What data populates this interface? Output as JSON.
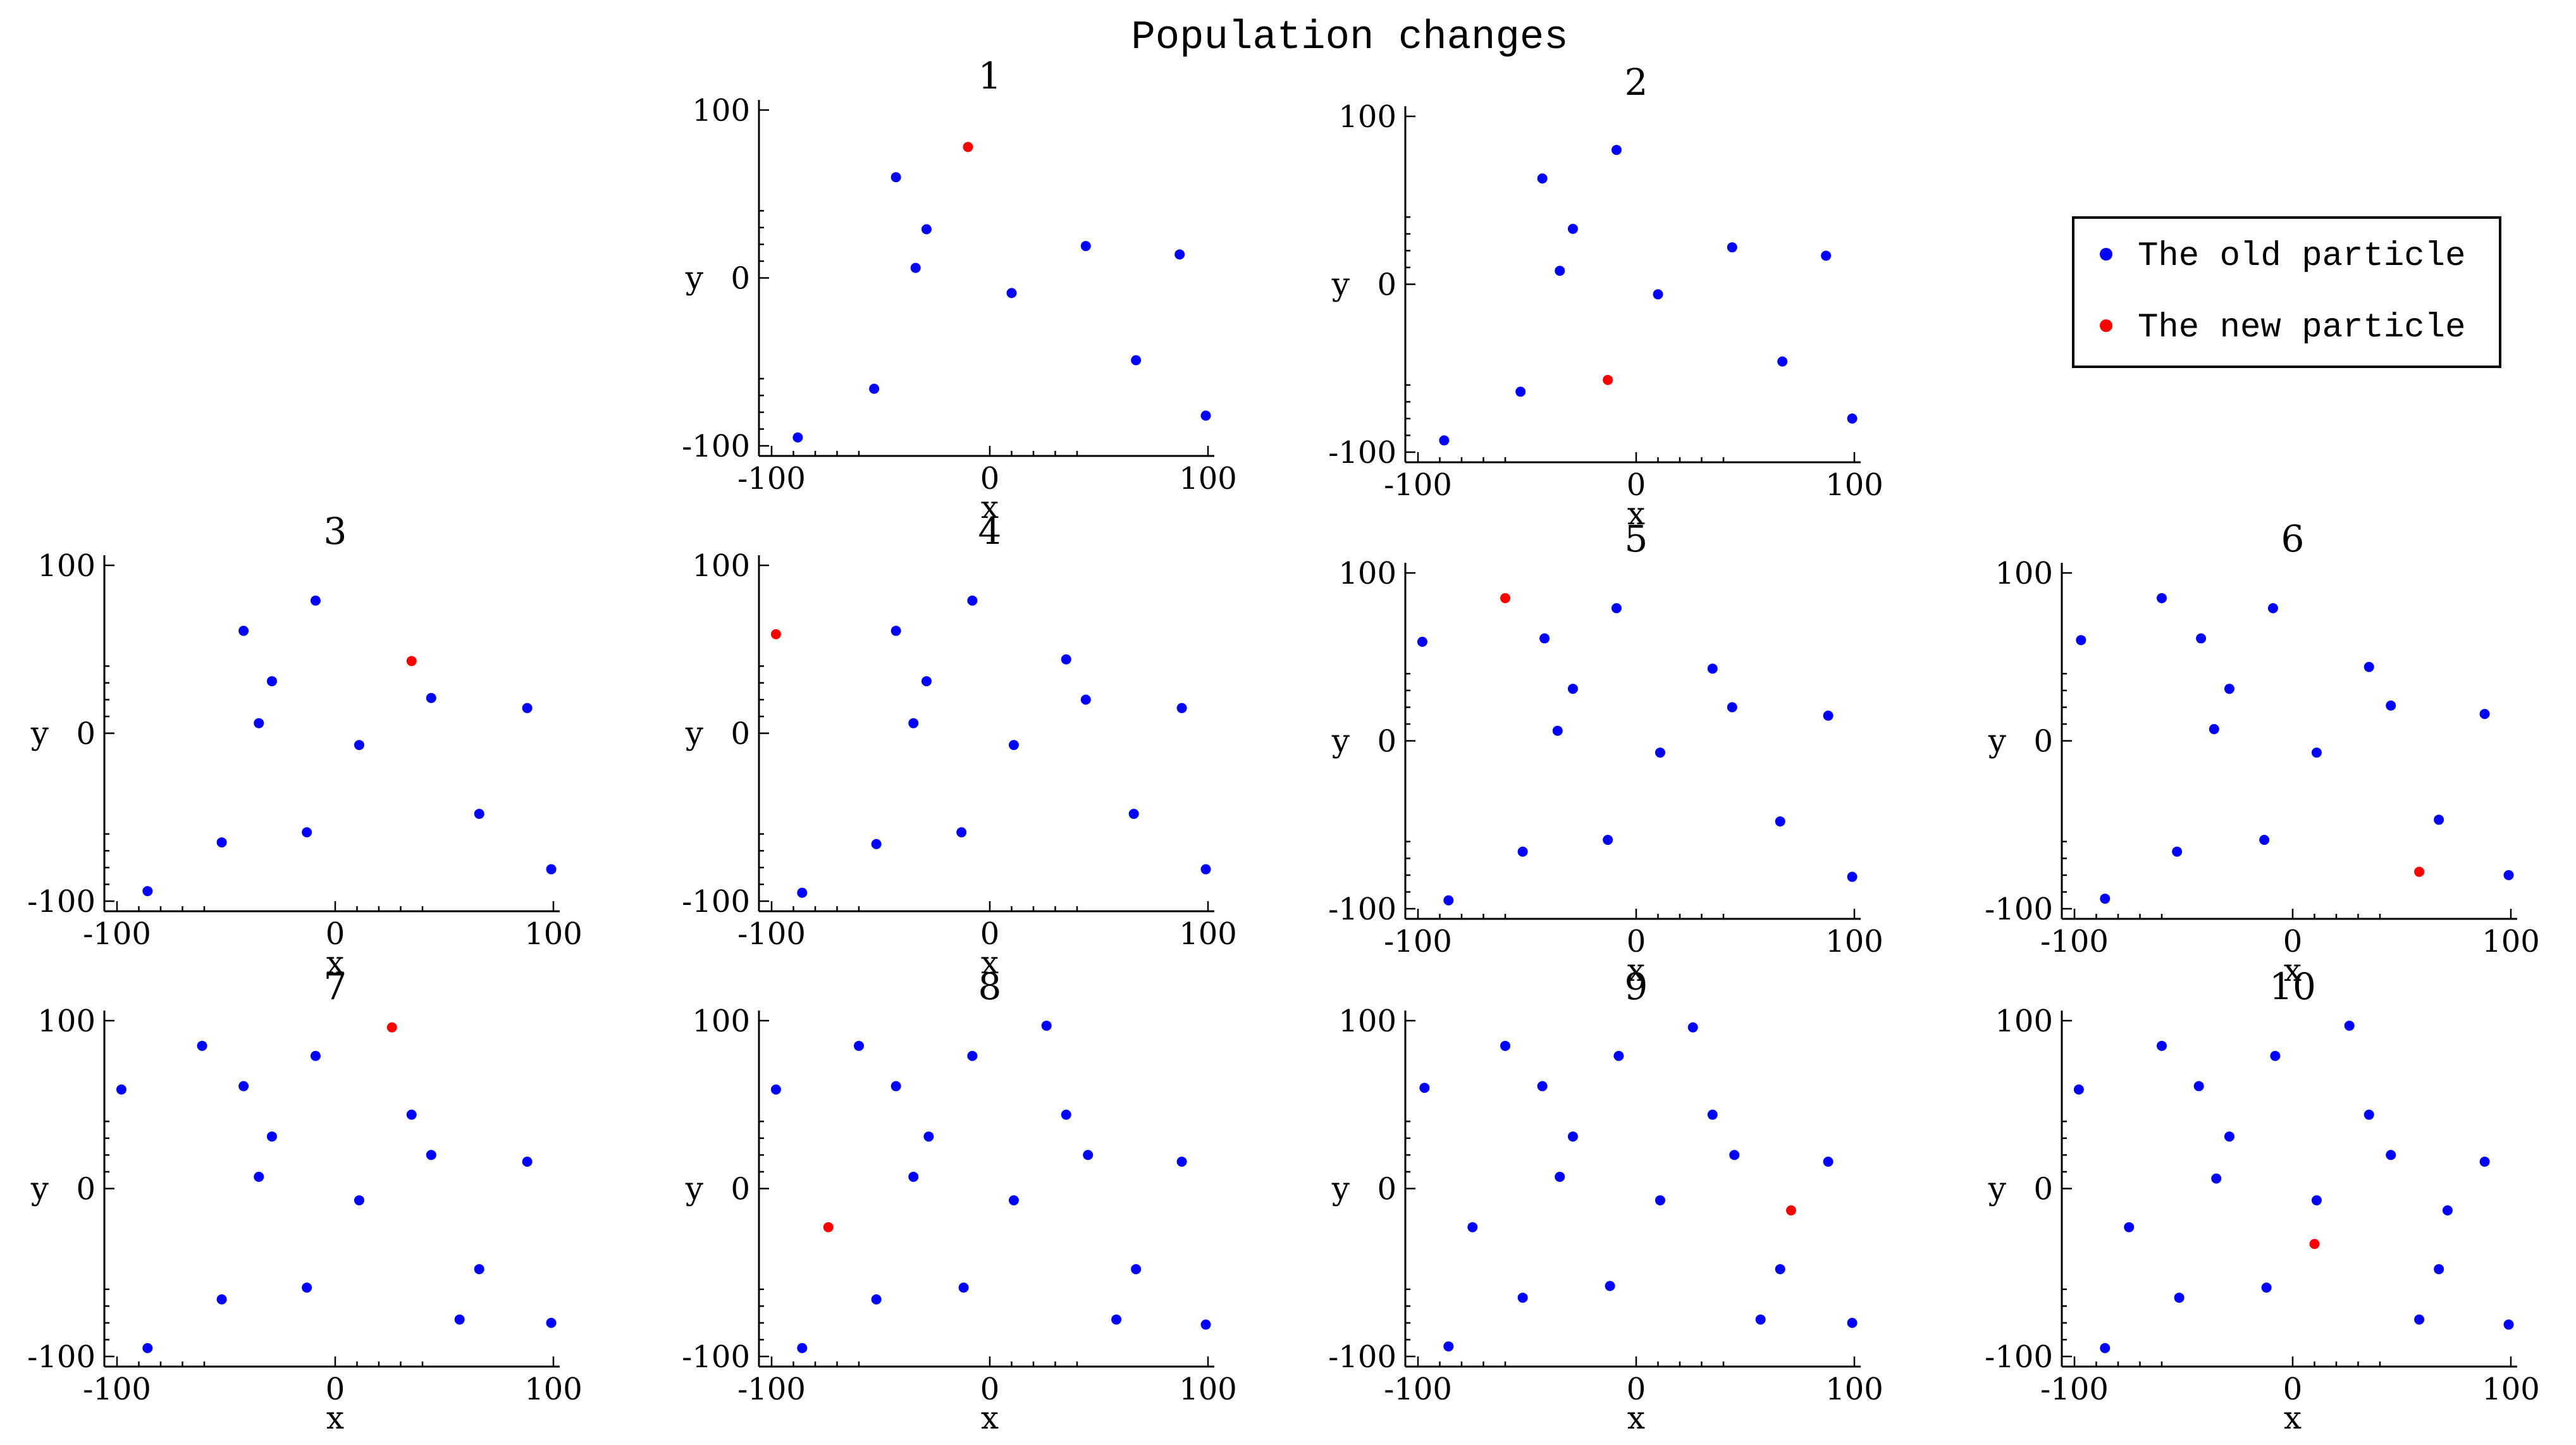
{
  "figure": {
    "title": "Population changes",
    "legend": {
      "placement": "right of top row",
      "entries": [
        {
          "label": "The old particle",
          "color": "#0000ff"
        },
        {
          "label": "The new particle",
          "color": "#ff0000"
        }
      ]
    },
    "colors": {
      "old": "#0000ff",
      "new": "#ff0000"
    }
  },
  "chart_data": [
    {
      "type": "scatter",
      "title": "1",
      "xlabel": "x",
      "ylabel": "y",
      "xlim": [
        -100,
        100
      ],
      "ylim": [
        -100,
        100
      ],
      "grid": false,
      "xticks": [
        "-100",
        "0",
        "100"
      ],
      "yticks": [
        "100",
        "0",
        "-100"
      ],
      "series": [
        {
          "role": "old",
          "points": [
            [
              -88,
              -95
            ],
            [
              -53,
              -66
            ],
            [
              -43,
              60
            ],
            [
              -34,
              6
            ],
            [
              -29,
              29
            ],
            [
              10,
              -9
            ],
            [
              44,
              19
            ],
            [
              67,
              -49
            ],
            [
              87,
              14
            ],
            [
              99,
              -82
            ]
          ]
        },
        {
          "role": "new",
          "points": [
            [
              -10,
              78
            ]
          ]
        }
      ]
    },
    {
      "type": "scatter",
      "title": "2",
      "xlabel": "x",
      "ylabel": "y",
      "xlim": [
        -100,
        100
      ],
      "ylim": [
        -100,
        100
      ],
      "grid": false,
      "xticks": [
        "-100",
        "0",
        "100"
      ],
      "yticks": [
        "100",
        "0",
        "-100"
      ],
      "series": [
        {
          "role": "old",
          "points": [
            [
              -88,
              -93
            ],
            [
              -53,
              -64
            ],
            [
              -43,
              63
            ],
            [
              -35,
              8
            ],
            [
              -29,
              33
            ],
            [
              -9,
              80
            ],
            [
              10,
              -6
            ],
            [
              44,
              22
            ],
            [
              67,
              -46
            ],
            [
              87,
              17
            ],
            [
              99,
              -80
            ]
          ]
        },
        {
          "role": "new",
          "points": [
            [
              -13,
              -57
            ]
          ]
        }
      ]
    },
    {
      "type": "scatter",
      "title": "3",
      "xlabel": "x",
      "ylabel": "y",
      "xlim": [
        -100,
        100
      ],
      "ylim": [
        -100,
        100
      ],
      "grid": false,
      "xticks": [
        "-100",
        "0",
        "100"
      ],
      "yticks": [
        "100",
        "0",
        "-100"
      ],
      "series": [
        {
          "role": "old",
          "points": [
            [
              -86,
              -94
            ],
            [
              -52,
              -65
            ],
            [
              -42,
              61
            ],
            [
              -35,
              6
            ],
            [
              -29,
              31
            ],
            [
              -13,
              -59
            ],
            [
              -9,
              79
            ],
            [
              11,
              -7
            ],
            [
              44,
              21
            ],
            [
              66,
              -48
            ],
            [
              88,
              15
            ],
            [
              99,
              -81
            ]
          ]
        },
        {
          "role": "new",
          "points": [
            [
              35,
              43
            ]
          ]
        }
      ]
    },
    {
      "type": "scatter",
      "title": "4",
      "xlabel": "x",
      "ylabel": "y",
      "xlim": [
        -100,
        100
      ],
      "ylim": [
        -100,
        100
      ],
      "grid": false,
      "xticks": [
        "-100",
        "0",
        "100"
      ],
      "yticks": [
        "100",
        "0",
        "-100"
      ],
      "series": [
        {
          "role": "old",
          "points": [
            [
              -86,
              -95
            ],
            [
              -52,
              -66
            ],
            [
              -43,
              61
            ],
            [
              -35,
              6
            ],
            [
              -29,
              31
            ],
            [
              -13,
              -59
            ],
            [
              -8,
              79
            ],
            [
              11,
              -7
            ],
            [
              35,
              44
            ],
            [
              44,
              20
            ],
            [
              66,
              -48
            ],
            [
              88,
              15
            ],
            [
              99,
              -81
            ]
          ]
        },
        {
          "role": "new",
          "points": [
            [
              -98,
              59
            ]
          ]
        }
      ]
    },
    {
      "type": "scatter",
      "title": "5",
      "xlabel": "x",
      "ylabel": "y",
      "xlim": [
        -100,
        100
      ],
      "ylim": [
        -100,
        100
      ],
      "grid": false,
      "xticks": [
        "-100",
        "0",
        "100"
      ],
      "yticks": [
        "100",
        "0",
        "-100"
      ],
      "series": [
        {
          "role": "old",
          "points": [
            [
              -98,
              59
            ],
            [
              -86,
              -95
            ],
            [
              -52,
              -66
            ],
            [
              -42,
              61
            ],
            [
              -36,
              6
            ],
            [
              -29,
              31
            ],
            [
              -13,
              -59
            ],
            [
              -9,
              79
            ],
            [
              11,
              -7
            ],
            [
              35,
              43
            ],
            [
              44,
              20
            ],
            [
              66,
              -48
            ],
            [
              88,
              15
            ],
            [
              99,
              -81
            ]
          ]
        },
        {
          "role": "new",
          "points": [
            [
              -60,
              85
            ]
          ]
        }
      ]
    },
    {
      "type": "scatter",
      "title": "6",
      "xlabel": "x",
      "ylabel": "y",
      "xlim": [
        -100,
        100
      ],
      "ylim": [
        -100,
        100
      ],
      "grid": false,
      "xticks": [
        "-100",
        "0",
        "100"
      ],
      "yticks": [
        "100",
        "0",
        "-100"
      ],
      "series": [
        {
          "role": "old",
          "points": [
            [
              -97,
              60
            ],
            [
              -86,
              -94
            ],
            [
              -53,
              -66
            ],
            [
              -60,
              85
            ],
            [
              -42,
              61
            ],
            [
              -36,
              7
            ],
            [
              -29,
              31
            ],
            [
              -13,
              -59
            ],
            [
              -9,
              79
            ],
            [
              11,
              -7
            ],
            [
              35,
              44
            ],
            [
              45,
              21
            ],
            [
              67,
              -47
            ],
            [
              88,
              16
            ],
            [
              99,
              -80
            ]
          ]
        },
        {
          "role": "new",
          "points": [
            [
              58,
              -78
            ]
          ]
        }
      ]
    },
    {
      "type": "scatter",
      "title": "7",
      "xlabel": "x",
      "ylabel": "y",
      "xlim": [
        -100,
        100
      ],
      "ylim": [
        -100,
        100
      ],
      "grid": false,
      "xticks": [
        "-100",
        "0",
        "100"
      ],
      "yticks": [
        "100",
        "0",
        "-100"
      ],
      "series": [
        {
          "role": "old",
          "points": [
            [
              -98,
              59
            ],
            [
              -86,
              -95
            ],
            [
              -61,
              85
            ],
            [
              -52,
              -66
            ],
            [
              -42,
              61
            ],
            [
              -35,
              7
            ],
            [
              -29,
              31
            ],
            [
              -13,
              -59
            ],
            [
              -9,
              79
            ],
            [
              11,
              -7
            ],
            [
              35,
              44
            ],
            [
              44,
              20
            ],
            [
              57,
              -78
            ],
            [
              66,
              -48
            ],
            [
              88,
              16
            ],
            [
              99,
              -80
            ]
          ]
        },
        {
          "role": "new",
          "points": [
            [
              26,
              96
            ]
          ]
        }
      ]
    },
    {
      "type": "scatter",
      "title": "8",
      "xlabel": "x",
      "ylabel": "y",
      "xlim": [
        -100,
        100
      ],
      "ylim": [
        -100,
        100
      ],
      "grid": false,
      "xticks": [
        "-100",
        "0",
        "100"
      ],
      "yticks": [
        "100",
        "0",
        "-100"
      ],
      "series": [
        {
          "role": "old",
          "points": [
            [
              -98,
              59
            ],
            [
              -86,
              -95
            ],
            [
              -60,
              85
            ],
            [
              -52,
              -66
            ],
            [
              -43,
              61
            ],
            [
              -35,
              7
            ],
            [
              -28,
              31
            ],
            [
              -12,
              -59
            ],
            [
              -8,
              79
            ],
            [
              11,
              -7
            ],
            [
              26,
              97
            ],
            [
              35,
              44
            ],
            [
              45,
              20
            ],
            [
              58,
              -78
            ],
            [
              67,
              -48
            ],
            [
              88,
              16
            ],
            [
              99,
              -81
            ]
          ]
        },
        {
          "role": "new",
          "points": [
            [
              -74,
              -23
            ]
          ]
        }
      ]
    },
    {
      "type": "scatter",
      "title": "9",
      "xlabel": "x",
      "ylabel": "y",
      "xlim": [
        -100,
        100
      ],
      "ylim": [
        -100,
        100
      ],
      "grid": false,
      "xticks": [
        "-100",
        "0",
        "100"
      ],
      "yticks": [
        "100",
        "0",
        "-100"
      ],
      "series": [
        {
          "role": "old",
          "points": [
            [
              -97,
              60
            ],
            [
              -86,
              -94
            ],
            [
              -75,
              -23
            ],
            [
              -60,
              85
            ],
            [
              -52,
              -65
            ],
            [
              -43,
              61
            ],
            [
              -35,
              7
            ],
            [
              -29,
              31
            ],
            [
              -12,
              -58
            ],
            [
              -8,
              79
            ],
            [
              11,
              -7
            ],
            [
              26,
              96
            ],
            [
              35,
              44
            ],
            [
              45,
              20
            ],
            [
              57,
              -78
            ],
            [
              66,
              -48
            ],
            [
              88,
              16
            ],
            [
              99,
              -80
            ]
          ]
        },
        {
          "role": "new",
          "points": [
            [
              71,
              -13
            ]
          ]
        }
      ]
    },
    {
      "type": "scatter",
      "title": "10",
      "xlabel": "x",
      "ylabel": "y",
      "xlim": [
        -100,
        100
      ],
      "ylim": [
        -100,
        100
      ],
      "grid": false,
      "xticks": [
        "-100",
        "0",
        "100"
      ],
      "yticks": [
        "100",
        "0",
        "-100"
      ],
      "series": [
        {
          "role": "old",
          "points": [
            [
              -98,
              59
            ],
            [
              -86,
              -95
            ],
            [
              -75,
              -23
            ],
            [
              -60,
              85
            ],
            [
              -52,
              -65
            ],
            [
              -43,
              61
            ],
            [
              -35,
              6
            ],
            [
              -29,
              31
            ],
            [
              -12,
              -59
            ],
            [
              -8,
              79
            ],
            [
              11,
              -7
            ],
            [
              26,
              97
            ],
            [
              35,
              44
            ],
            [
              45,
              20
            ],
            [
              58,
              -78
            ],
            [
              67,
              -48
            ],
            [
              71,
              -13
            ],
            [
              88,
              16
            ],
            [
              99,
              -81
            ]
          ]
        },
        {
          "role": "new",
          "points": [
            [
              10,
              -33
            ]
          ]
        }
      ]
    }
  ]
}
